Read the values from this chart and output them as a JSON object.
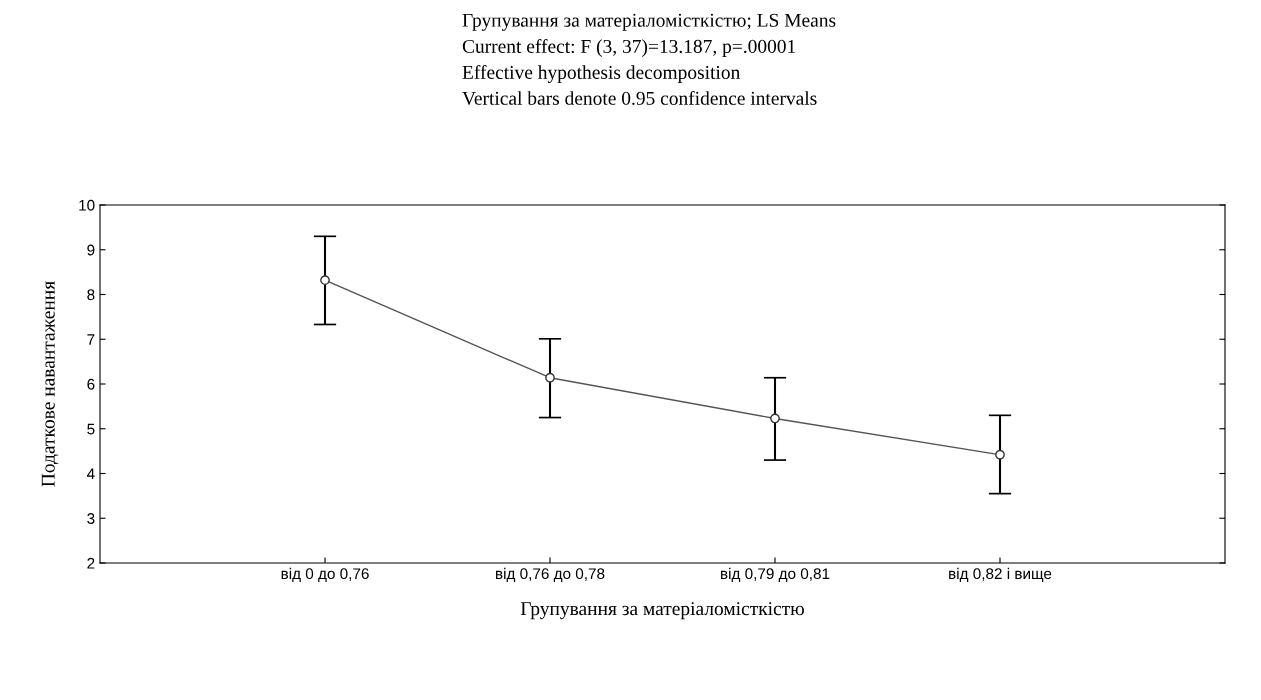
{
  "chart_data": {
    "type": "line",
    "title": "Групування за матеріаломісткістю; LS Means",
    "annotations": [
      "Current effect: F (3, 37)=13.187, p=.00001",
      "Effective hypothesis decomposition",
      "Vertical bars denote 0.95 confidence intervals"
    ],
    "xlabel": "Групування за матеріаломісткістю",
    "ylabel": "Податкове навантаження",
    "categories": [
      "від 0 до 0,76",
      "від 0,76 до 0,78",
      "від 0,79 до 0,81",
      "від 0,82 і вище"
    ],
    "series": [
      {
        "color": "#555555",
        "values": [
          8.32,
          6.14,
          5.23,
          4.42
        ],
        "errors": [
          [
            7.33,
            9.3
          ],
          [
            5.25,
            7.01
          ],
          [
            4.3,
            6.14
          ],
          [
            3.55,
            5.3
          ]
        ]
      }
    ],
    "ylim": [
      2,
      10
    ],
    "yticks": [
      2,
      3,
      4,
      5,
      6,
      7,
      8,
      9,
      10
    ],
    "grid": false,
    "marker": "circle",
    "line_style": "solid",
    "legend": false
  }
}
